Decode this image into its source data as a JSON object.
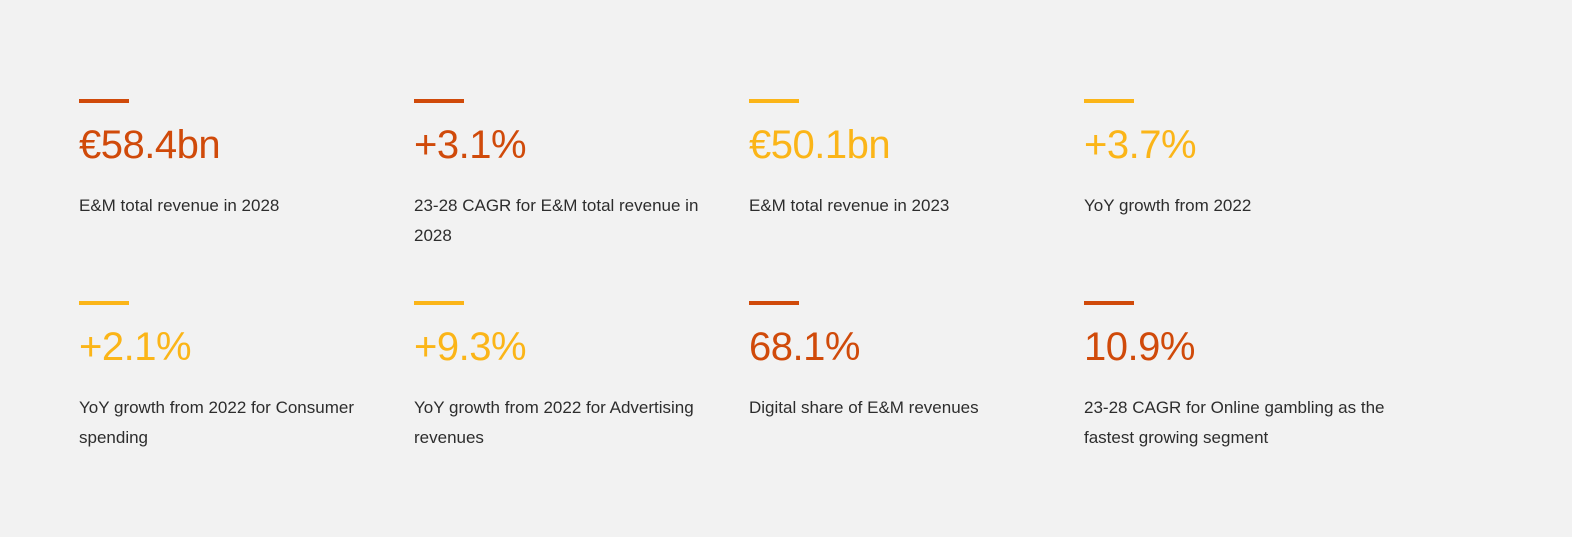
{
  "colors": {
    "red_orange": "#d04a0a",
    "yellow": "#fbb518",
    "background": "#f2f2f2",
    "text": "#2d2d2d"
  },
  "stats": [
    {
      "value": "€58.4bn",
      "description": "E&M total revenue in 2028",
      "accent": "red_orange"
    },
    {
      "value": "+3.1%",
      "description": "23-28 CAGR for E&M total revenue in 2028",
      "accent": "red_orange"
    },
    {
      "value": "€50.1bn",
      "description": "E&M total revenue in 2023",
      "accent": "yellow"
    },
    {
      "value": "+3.7%",
      "description": "YoY growth from 2022",
      "accent": "yellow"
    },
    {
      "value": "+2.1%",
      "description": "YoY growth from 2022 for Consumer spending",
      "accent": "yellow"
    },
    {
      "value": "+9.3%",
      "description": "YoY growth from 2022 for Advertising revenues",
      "accent": "yellow"
    },
    {
      "value": "68.1%",
      "description": "Digital share of E&M revenues",
      "accent": "red_orange"
    },
    {
      "value": "10.9%",
      "description": "23-28 CAGR for Online gambling as the fastest growing segment",
      "accent": "red_orange"
    }
  ]
}
